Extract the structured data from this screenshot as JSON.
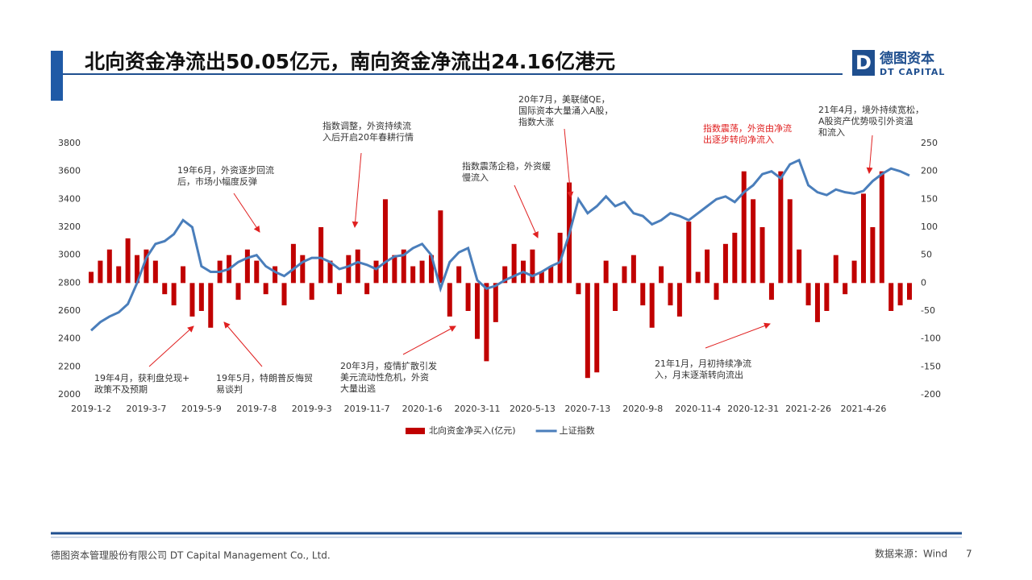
{
  "header": {
    "title": "北向资金净流出50.05亿元，南向资金净流出24.16亿港元",
    "logo_cn": "德图资本",
    "logo_en": "DT CAPITAL"
  },
  "chart_data": {
    "type": "bar_line",
    "categories": [
      "2019-1-2",
      null,
      null,
      null,
      null,
      null,
      "2019-3-7",
      null,
      null,
      null,
      null,
      null,
      "2019-5-9",
      null,
      null,
      null,
      null,
      null,
      "2019-7-8",
      null,
      null,
      null,
      null,
      null,
      "2019-9-3",
      null,
      null,
      null,
      null,
      null,
      "2019-11-7",
      null,
      null,
      null,
      null,
      null,
      "2020-1-6",
      null,
      null,
      null,
      null,
      null,
      "2020-3-11",
      null,
      null,
      null,
      null,
      null,
      "2020-5-13",
      null,
      null,
      null,
      null,
      null,
      "2020-7-13",
      null,
      null,
      null,
      null,
      null,
      "2020-9-8",
      null,
      null,
      null,
      null,
      null,
      "2020-11-4",
      null,
      null,
      null,
      null,
      null,
      "2020-12-31",
      null,
      null,
      null,
      null,
      null,
      "2021-2-26",
      null,
      null,
      null,
      null,
      null,
      "2021-4-26",
      null,
      null,
      null,
      null,
      null
    ],
    "series": [
      {
        "name": "北向资金净买入(亿元)",
        "color": "#c00000",
        "axis": "y2",
        "values": [
          20,
          40,
          60,
          30,
          80,
          50,
          60,
          40,
          -20,
          -40,
          30,
          -60,
          -50,
          -80,
          40,
          50,
          -30,
          60,
          40,
          -20,
          30,
          -40,
          70,
          50,
          -30,
          100,
          40,
          -20,
          50,
          60,
          -20,
          40,
          150,
          50,
          60,
          30,
          40,
          50,
          130,
          -60,
          30,
          -50,
          -100,
          -140,
          -70,
          30,
          70,
          40,
          60,
          20,
          30,
          90,
          180,
          -20,
          -170,
          -160,
          40,
          -50,
          30,
          50,
          -40,
          -80,
          30,
          -40,
          -60,
          110,
          20,
          60,
          -30,
          70,
          90,
          200,
          150,
          100,
          -30,
          200,
          150,
          60,
          -40,
          -70,
          -50,
          50,
          -20,
          40,
          160,
          100,
          200,
          -50,
          -40,
          -30
        ]
      },
      {
        "name": "上证指数",
        "color": "#4a7ebb",
        "axis": "y",
        "values": [
          2460,
          2520,
          2560,
          2590,
          2650,
          2800,
          2980,
          3080,
          3100,
          3150,
          3250,
          3200,
          2920,
          2880,
          2880,
          2900,
          2950,
          2980,
          3000,
          2920,
          2880,
          2850,
          2900,
          2950,
          2980,
          2980,
          2950,
          2900,
          2920,
          2950,
          2930,
          2900,
          2950,
          2990,
          3000,
          3050,
          3080,
          3000,
          2760,
          2950,
          3020,
          3050,
          2820,
          2760,
          2780,
          2820,
          2850,
          2880,
          2850,
          2880,
          2920,
          2950,
          3150,
          3400,
          3300,
          3350,
          3420,
          3350,
          3380,
          3300,
          3280,
          3220,
          3250,
          3300,
          3280,
          3250,
          3300,
          3350,
          3400,
          3420,
          3380,
          3450,
          3500,
          3580,
          3600,
          3550,
          3650,
          3680,
          3500,
          3450,
          3430,
          3470,
          3450,
          3440,
          3460,
          3530,
          3580,
          3620,
          3600,
          3570
        ]
      }
    ],
    "ylim": [
      2000,
      3800
    ],
    "yticks": [
      2000,
      2200,
      2400,
      2600,
      2800,
      3000,
      3200,
      3400,
      3600,
      3800
    ],
    "y2lim": [
      -200,
      250
    ],
    "y2ticks": [
      -200,
      -150,
      -100,
      -50,
      0,
      50,
      100,
      150,
      200,
      250
    ],
    "legend": "bottom",
    "annotations": [
      {
        "text": [
          "19年4月，获利盘兑现+",
          "政策不及预期"
        ]
      },
      {
        "text": [
          "19年5月，特朗普反悔贸",
          "易谈判"
        ]
      },
      {
        "text": [
          "19年6月，外资逐步回流",
          "后，市场小幅度反弹"
        ]
      },
      {
        "text": [
          "指数调整，外资持续流",
          "入后开启20年春耕行情"
        ]
      },
      {
        "text": [
          "20年3月，疫情扩散引发",
          "美元流动性危机，外资",
          "大量出逃"
        ]
      },
      {
        "text": [
          "指数震荡企稳，外资缓",
          "慢流入"
        ]
      },
      {
        "text": [
          "20年7月，美联储QE，",
          "国际资本大量涌入A股，",
          "指数大涨"
        ]
      },
      {
        "text": [
          "指数震荡，外资由净流",
          "出逐步转向净流入"
        ],
        "color": "#e02020"
      },
      {
        "text": [
          "21年1月，月初持续净流",
          "入，月末逐渐转向流出"
        ]
      },
      {
        "text": [
          "21年4月，境外持续宽松，",
          "A股资产优势吸引外资温",
          "和流入"
        ]
      }
    ]
  },
  "footer": {
    "company": "德图资本管理股份有限公司  DT Capital Management  Co., Ltd.",
    "source": "数据来源：Wind",
    "page": "7"
  }
}
